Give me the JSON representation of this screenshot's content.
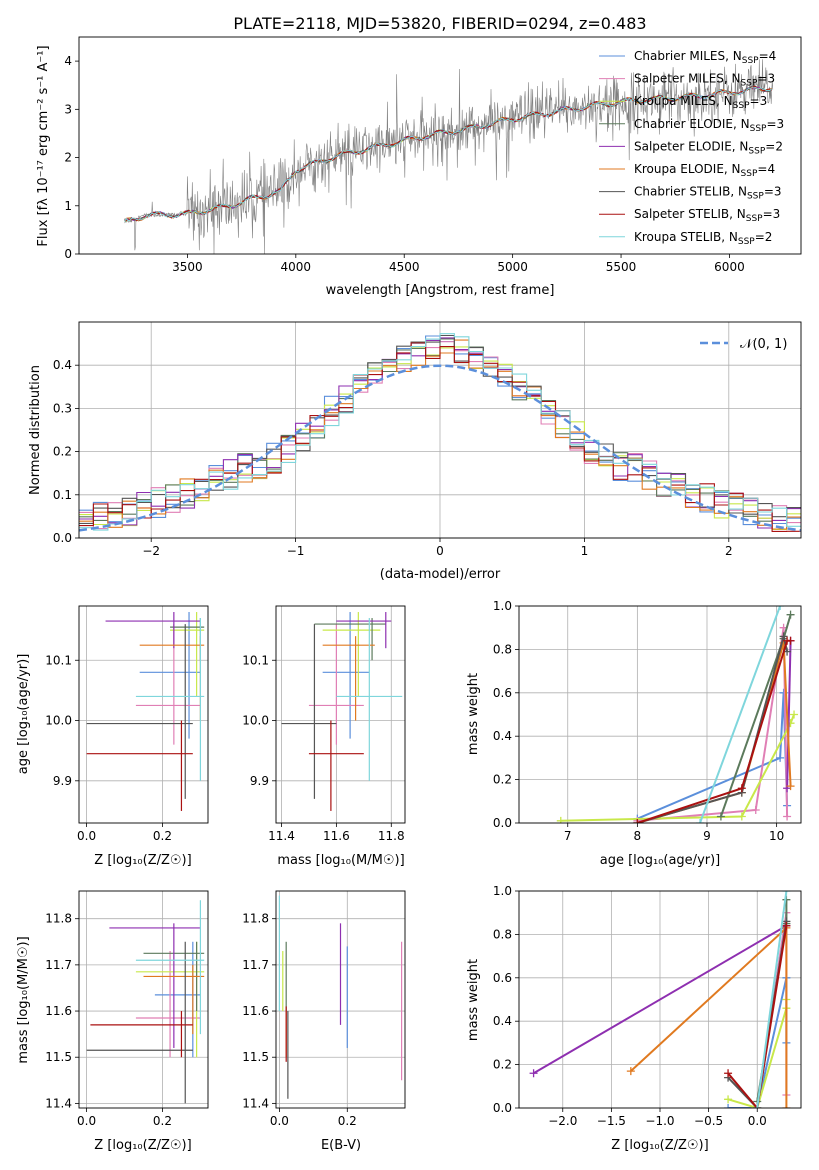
{
  "title": "PLATE=2118, MJD=53820, FIBERID=0294, z=0.483",
  "colors": {
    "Chabrier MILES": "#5b8fdb",
    "Salpeter MILES": "#e07fb5",
    "Kroupa MILES": "#d8e040",
    "Chabrier ELODIE": "#5c7a5c",
    "Salpeter ELODIE": "#8e2fb0",
    "Kroupa ELODIE": "#e07a20",
    "Chabrier STELIB": "#555555",
    "Salpeter STELIB": "#aa1111",
    "Kroupa STELIB": "#7fd6dc",
    "Kroupa MILES line": "#c8e84a",
    "observed": "#808080",
    "gaussian": "#5b8fdb"
  },
  "chart_data": [
    {
      "id": "spectrum",
      "type": "line",
      "xlabel": "wavelength [Angstrom, rest frame]",
      "ylabel": "Flux [f_λ 10^-17 erg cm^-2 s^-1 A^-1]",
      "xlim": [
        3000,
        6330
      ],
      "ylim": [
        0,
        4.5
      ],
      "xticks": [
        "3500",
        "4000",
        "4500",
        "5000",
        "5500",
        "6000"
      ],
      "yticks": [
        "0",
        "1",
        "2",
        "3",
        "4"
      ],
      "grid": false,
      "legend_placement": "top-right",
      "legend": [
        {
          "label": "Chabrier MILES, N",
          "sub": "SSP",
          "suffix": "=4"
        },
        {
          "label": "Salpeter MILES, N",
          "sub": "SSP",
          "suffix": "=3"
        },
        {
          "label": "Kroupa MILES, N",
          "sub": "SSP",
          "suffix": "=3"
        },
        {
          "label": "Chabrier ELODIE, N",
          "sub": "SSP",
          "suffix": "=3"
        },
        {
          "label": "Salpeter ELODIE, N",
          "sub": "SSP",
          "suffix": "=2"
        },
        {
          "label": "Kroupa ELODIE, N",
          "sub": "SSP",
          "suffix": "=4"
        },
        {
          "label": "Chabrier STELIB, N",
          "sub": "SSP",
          "suffix": "=3"
        },
        {
          "label": "Salpeter STELIB, N",
          "sub": "SSP",
          "suffix": "=3"
        },
        {
          "label": "Kroupa STELIB, N",
          "sub": "SSP",
          "suffix": "=2"
        }
      ],
      "model_continuum": [
        [
          3210,
          0.65
        ],
        [
          3300,
          0.8
        ],
        [
          3500,
          0.83
        ],
        [
          3700,
          1.0
        ],
        [
          3800,
          1.15
        ],
        [
          3930,
          1.3
        ],
        [
          4000,
          1.75
        ],
        [
          4200,
          2.05
        ],
        [
          4400,
          2.25
        ],
        [
          4600,
          2.45
        ],
        [
          4800,
          2.6
        ],
        [
          5000,
          2.8
        ],
        [
          5200,
          2.95
        ],
        [
          5400,
          3.1
        ],
        [
          5600,
          3.2
        ],
        [
          5800,
          3.25
        ],
        [
          6000,
          3.35
        ],
        [
          6200,
          3.45
        ]
      ]
    },
    {
      "id": "residuals",
      "type": "histogram",
      "xlabel": "(data-model)/error",
      "ylabel": "Normed distribution",
      "xlim": [
        -2.5,
        2.5
      ],
      "ylim": [
        0,
        0.5
      ],
      "xticks": [
        "−2",
        "−1",
        "0",
        "1",
        "2"
      ],
      "yticks": [
        "0.0",
        "0.1",
        "0.2",
        "0.3",
        "0.4"
      ],
      "grid": true,
      "legend_placement": "top-right",
      "legend_label": "N(0,1)",
      "bin_width": 0.1
    },
    {
      "id": "age_vs_Z",
      "type": "errorbar",
      "xlabel": "Z [log10(Z/Z⊙)]",
      "ylabel": "age [log10(age/yr)]",
      "xlim": [
        -0.02,
        0.32
      ],
      "ylim": [
        9.83,
        10.19
      ],
      "xticks": [
        "0.0",
        "0.2"
      ],
      "yticks": [
        "9.9",
        "10.0",
        "10.1"
      ],
      "grid": true,
      "points": [
        {
          "model": "Chabrier MILES",
          "x": 0.27,
          "xerr": [
            0.14,
            0.3
          ],
          "y": 10.08,
          "yerr": [
            9.97,
            10.18
          ]
        },
        {
          "model": "Salpeter MILES",
          "x": 0.23,
          "xerr": [
            0.13,
            0.3
          ],
          "y": 10.025,
          "yerr": [
            9.96,
            10.16
          ]
        },
        {
          "model": "Kroupa MILES",
          "x": 0.29,
          "xerr": [
            0.22,
            0.31
          ],
          "y": 10.15,
          "yerr": [
            10.04,
            10.18
          ]
        },
        {
          "model": "Chabrier ELODIE",
          "x": 0.3,
          "xerr": [
            0.22,
            0.31
          ],
          "y": 10.155,
          "yerr": [
            10.1,
            10.17
          ]
        },
        {
          "model": "Salpeter ELODIE",
          "x": 0.23,
          "xerr": [
            0.05,
            0.3
          ],
          "y": 10.165,
          "yerr": [
            10.12,
            10.18
          ]
        },
        {
          "model": "Kroupa ELODIE",
          "x": 0.3,
          "xerr": [
            0.14,
            0.31
          ],
          "y": 10.125,
          "yerr": [
            10.0,
            10.14
          ]
        },
        {
          "model": "Chabrier STELIB",
          "x": 0.26,
          "xerr": [
            0.0,
            0.28
          ],
          "y": 9.995,
          "yerr": [
            9.87,
            10.16
          ]
        },
        {
          "model": "Salpeter STELIB",
          "x": 0.25,
          "xerr": [
            0.0,
            0.28
          ],
          "y": 9.945,
          "yerr": [
            9.85,
            10.0
          ]
        },
        {
          "model": "Kroupa STELIB",
          "x": 0.3,
          "xerr": [
            0.13,
            0.31
          ],
          "y": 10.04,
          "yerr": [
            9.9,
            10.17
          ]
        }
      ]
    },
    {
      "id": "age_vs_mass",
      "type": "errorbar",
      "xlabel": "mass [log10(M/M⊙)]",
      "ylabel": "",
      "xlim": [
        11.38,
        11.85
      ],
      "ylim": [
        9.83,
        10.19
      ],
      "xticks": [
        "11.4",
        "11.6",
        "11.8"
      ],
      "yticks": [
        "9.9",
        "10.0",
        "10.1"
      ],
      "grid": true,
      "points": [
        {
          "model": "Chabrier MILES",
          "x": 11.65,
          "xerr": [
            11.55,
            11.72
          ],
          "y": 10.08,
          "yerr": [
            9.97,
            10.18
          ]
        },
        {
          "model": "Salpeter MILES",
          "x": 11.6,
          "xerr": [
            11.5,
            11.7
          ],
          "y": 10.025,
          "yerr": [
            9.96,
            10.16
          ]
        },
        {
          "model": "Kroupa MILES",
          "x": 11.68,
          "xerr": [
            11.55,
            11.76
          ],
          "y": 10.15,
          "yerr": [
            10.04,
            10.18
          ]
        },
        {
          "model": "Chabrier ELODIE",
          "x": 11.73,
          "xerr": [
            11.52,
            11.78
          ],
          "y": 10.16,
          "yerr": [
            10.1,
            10.17
          ]
        },
        {
          "model": "Salpeter ELODIE",
          "x": 11.78,
          "xerr": [
            11.6,
            11.8
          ],
          "y": 10.165,
          "yerr": [
            10.12,
            10.18
          ]
        },
        {
          "model": "Kroupa ELODIE",
          "x": 11.67,
          "xerr": [
            11.55,
            11.74
          ],
          "y": 10.125,
          "yerr": [
            10.0,
            10.14
          ]
        },
        {
          "model": "Chabrier STELIB",
          "x": 11.52,
          "xerr": [
            11.4,
            11.6
          ],
          "y": 9.995,
          "yerr": [
            9.87,
            10.16
          ]
        },
        {
          "model": "Salpeter STELIB",
          "x": 11.58,
          "xerr": [
            11.5,
            11.7
          ],
          "y": 9.945,
          "yerr": [
            9.85,
            10.0
          ]
        },
        {
          "model": "Kroupa STELIB",
          "x": 11.72,
          "xerr": [
            11.6,
            11.84
          ],
          "y": 10.04,
          "yerr": [
            9.9,
            10.17
          ]
        }
      ]
    },
    {
      "id": "massweight_vs_age",
      "type": "line",
      "xlabel": "age [log10(age/yr)]",
      "ylabel": "mass weight",
      "xlim": [
        6.3,
        10.35
      ],
      "ylim": [
        0,
        1
      ],
      "xticks": [
        "7",
        "8",
        "9",
        "10"
      ],
      "yticks": [
        "0.0",
        "0.2",
        "0.4",
        "0.6",
        "0.8",
        "1.0"
      ],
      "grid": true,
      "series": [
        {
          "model": "Chabrier MILES",
          "x": [
            8.0,
            10.05,
            10.1,
            10.15
          ],
          "y": [
            0.02,
            0.3,
            0.6,
            0.08
          ]
        },
        {
          "model": "Salpeter MILES",
          "x": [
            8.0,
            9.7,
            10.1,
            10.15
          ],
          "y": [
            0.01,
            0.06,
            0.9,
            0.03
          ]
        },
        {
          "model": "Kroupa MILES",
          "x": [
            6.9,
            9.5,
            10.2,
            10.25
          ],
          "y": [
            0.01,
            0.03,
            0.46,
            0.5
          ]
        },
        {
          "model": "Chabrier ELODIE",
          "x": [
            9.2,
            10.1,
            10.2
          ],
          "y": [
            0.03,
            0.85,
            0.96
          ]
        },
        {
          "model": "Salpeter ELODIE",
          "x": [
            10.15,
            10.2
          ],
          "y": [
            0.16,
            0.84
          ]
        },
        {
          "model": "Kroupa ELODIE",
          "x": [
            8.0,
            9.5,
            10.1,
            10.2
          ],
          "y": [
            0.0,
            0.14,
            0.83,
            0.17
          ]
        },
        {
          "model": "Chabrier STELIB",
          "x": [
            8.0,
            9.5,
            10.1,
            10.15
          ],
          "y": [
            0.0,
            0.14,
            0.86,
            0.79
          ]
        },
        {
          "model": "Salpeter STELIB",
          "x": [
            8.0,
            9.5,
            10.15,
            10.2
          ],
          "y": [
            0.0,
            0.16,
            0.84,
            0.84
          ]
        },
        {
          "model": "Kroupa STELIB",
          "x": [
            8.9,
            10.05
          ],
          "y": [
            0.0,
            1.0
          ]
        }
      ]
    },
    {
      "id": "mass_vs_Z",
      "type": "errorbar",
      "xlabel": "Z [log10(Z/Z⊙)]",
      "ylabel": "mass [log10(M/M⊙)]",
      "xlim": [
        -0.02,
        0.32
      ],
      "ylim": [
        11.39,
        11.86
      ],
      "xticks": [
        "0.0",
        "0.2"
      ],
      "yticks": [
        "11.4",
        "11.5",
        "11.6",
        "11.7",
        "11.8"
      ],
      "grid": true,
      "points": [
        {
          "model": "Chabrier MILES",
          "x": 0.28,
          "xerr": [
            0.18,
            0.3
          ],
          "y": 11.635,
          "yerr": [
            11.5,
            11.75
          ]
        },
        {
          "model": "Salpeter MILES",
          "x": 0.22,
          "xerr": [
            0.13,
            0.3
          ],
          "y": 11.585,
          "yerr": [
            11.5,
            11.73
          ]
        },
        {
          "model": "Kroupa MILES",
          "x": 0.29,
          "xerr": [
            0.13,
            0.31
          ],
          "y": 11.685,
          "yerr": [
            11.5,
            11.75
          ]
        },
        {
          "model": "Chabrier ELODIE",
          "x": 0.29,
          "xerr": [
            0.15,
            0.31
          ],
          "y": 11.725,
          "yerr": [
            11.6,
            11.75
          ]
        },
        {
          "model": "Salpeter ELODIE",
          "x": 0.23,
          "xerr": [
            0.06,
            0.3
          ],
          "y": 11.78,
          "yerr": [
            11.52,
            11.79
          ]
        },
        {
          "model": "Kroupa ELODIE",
          "x": 0.28,
          "xerr": [
            0.15,
            0.31
          ],
          "y": 11.675,
          "yerr": [
            11.55,
            11.7
          ]
        },
        {
          "model": "Chabrier STELIB",
          "x": 0.26,
          "xerr": [
            0.0,
            0.28
          ],
          "y": 11.515,
          "yerr": [
            11.4,
            11.75
          ]
        },
        {
          "model": "Salpeter STELIB",
          "x": 0.25,
          "xerr": [
            0.01,
            0.28
          ],
          "y": 11.57,
          "yerr": [
            11.5,
            11.6
          ]
        },
        {
          "model": "Kroupa STELIB",
          "x": 0.3,
          "xerr": [
            0.13,
            0.31
          ],
          "y": 11.71,
          "yerr": [
            11.55,
            11.84
          ]
        }
      ]
    },
    {
      "id": "mass_vs_EBV",
      "type": "errorbar",
      "xlabel": "E(B-V)",
      "ylabel": "",
      "xlim": [
        -0.01,
        0.37
      ],
      "ylim": [
        11.39,
        11.86
      ],
      "xticks": [
        "0.0",
        "0.2"
      ],
      "yticks": [
        "11.4",
        "11.5",
        "11.6",
        "11.7",
        "11.8"
      ],
      "grid": true,
      "points": [
        {
          "model": "Chabrier MILES",
          "x": 0.2,
          "y": 11.63,
          "yerr": [
            11.52,
            11.74
          ]
        },
        {
          "model": "Salpeter MILES",
          "x": 0.36,
          "y": 11.6,
          "yerr": [
            11.45,
            11.75
          ]
        },
        {
          "model": "Kroupa MILES",
          "x": 0.01,
          "y": 11.68,
          "yerr": [
            11.6,
            11.73
          ]
        },
        {
          "model": "Chabrier ELODIE",
          "x": 0.02,
          "y": 11.7,
          "yerr": [
            11.6,
            11.75
          ]
        },
        {
          "model": "Salpeter ELODIE",
          "x": 0.18,
          "y": 11.66,
          "yerr": [
            11.57,
            11.79
          ]
        },
        {
          "model": "Kroupa ELODIE",
          "x": 0.02,
          "y": 11.56,
          "yerr": [
            11.5,
            11.6
          ]
        },
        {
          "model": "Chabrier STELIB",
          "x": 0.025,
          "y": 11.5,
          "yerr": [
            11.41,
            11.6
          ]
        },
        {
          "model": "Salpeter STELIB",
          "x": 0.02,
          "y": 11.55,
          "yerr": [
            11.49,
            11.61
          ]
        },
        {
          "model": "Kroupa STELIB",
          "x": 0.0,
          "y": 11.75,
          "yerr": [
            11.6,
            11.85
          ]
        }
      ]
    },
    {
      "id": "massweight_vs_Z",
      "type": "line",
      "xlabel": "Z [log10(Z/Z⊙)]",
      "ylabel": "mass weight",
      "xlim": [
        -2.45,
        0.45
      ],
      "ylim": [
        0,
        1
      ],
      "xticks": [
        "−2.0",
        "−1.5",
        "−1.0",
        "−0.5",
        "0.0"
      ],
      "yticks": [
        "0.0",
        "0.2",
        "0.4",
        "0.6",
        "0.8",
        "1.0"
      ],
      "grid": true,
      "series": [
        {
          "model": "Chabrier MILES",
          "x": [
            -0.3,
            0.0,
            0.3,
            0.3
          ],
          "y": [
            0.0,
            0.0,
            0.6,
            0.3
          ]
        },
        {
          "model": "Salpeter MILES",
          "x": [
            0.0,
            0.3,
            0.3
          ],
          "y": [
            0.0,
            0.9,
            0.06
          ]
        },
        {
          "model": "Kroupa MILES",
          "x": [
            -0.3,
            0.0,
            0.3,
            0.3
          ],
          "y": [
            0.04,
            0.0,
            0.46,
            0.5
          ]
        },
        {
          "model": "Chabrier ELODIE",
          "x": [
            0.0,
            0.3,
            0.3
          ],
          "y": [
            0.03,
            0.85,
            0.96
          ]
        },
        {
          "model": "Salpeter ELODIE",
          "x": [
            -2.3,
            0.3
          ],
          "y": [
            0.16,
            0.84
          ]
        },
        {
          "model": "Kroupa ELODIE",
          "x": [
            -1.3,
            0.3,
            0.3
          ],
          "y": [
            0.17,
            0.83,
            0.0
          ]
        },
        {
          "model": "Chabrier STELIB",
          "x": [
            -0.3,
            0.0,
            0.3
          ],
          "y": [
            0.14,
            0.0,
            0.86
          ]
        },
        {
          "model": "Salpeter STELIB",
          "x": [
            -0.3,
            0.0,
            0.3
          ],
          "y": [
            0.16,
            0.0,
            0.84
          ]
        },
        {
          "model": "Kroupa STELIB",
          "x": [
            0.0,
            0.3
          ],
          "y": [
            0.0,
            1.0
          ]
        }
      ]
    }
  ]
}
